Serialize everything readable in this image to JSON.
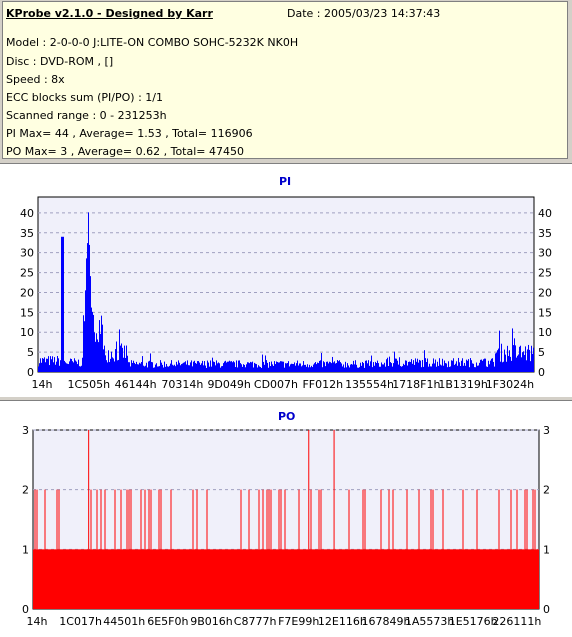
{
  "header": {
    "title": "KProbe v2.1.0 - Designed by Karr",
    "date": "Date : 2005/03/23 14:37:43",
    "lines": [
      "Model : 2-0-0-0 J:LITE-ON COMBO SOHC-5232K NK0H",
      "Disc : DVD-ROM ,  []",
      "Speed : 8x",
      "ECC blocks sum (PI/PO) : 1/1",
      "Scanned range : 0 - 231253h",
      "PI Max= 44 , Average= 1.53 , Total= 116906",
      "PO Max= 3 , Average= 0.62 , Total= 47450"
    ]
  },
  "colors": {
    "pi": "#0000ff",
    "po": "#ff0000",
    "plot_bg": "#f0f0fa",
    "grid": "#a0a0c0"
  },
  "chart_data": [
    {
      "type": "bar",
      "title": "PI",
      "ylim": [
        0,
        44
      ],
      "yticks": [
        0,
        5,
        10,
        15,
        20,
        25,
        30,
        35,
        40
      ],
      "xtick_labels": [
        "14h",
        "1C505h",
        "46144h",
        "70314h",
        "9D049h",
        "CD007h",
        "FF012h",
        "135554h",
        "1718F1h",
        "1B1319h",
        "1F3024h"
      ],
      "grid": "horizontal dashed",
      "profile": [
        {
          "from": 0.0,
          "to": 0.045,
          "level": 3.5
        },
        {
          "from": 0.045,
          "to": 0.052,
          "level": 34
        },
        {
          "from": 0.052,
          "to": 0.09,
          "level": 3
        },
        {
          "from": 0.09,
          "to": 0.11,
          "level": 44
        },
        {
          "from": 0.11,
          "to": 0.13,
          "level": 15
        },
        {
          "from": 0.13,
          "to": 0.18,
          "level": 6
        },
        {
          "from": 0.18,
          "to": 0.7,
          "level": 2.5
        },
        {
          "from": 0.7,
          "to": 0.92,
          "level": 3
        },
        {
          "from": 0.92,
          "to": 1.0,
          "level": 6
        }
      ]
    },
    {
      "type": "bar",
      "title": "PO",
      "ylim": [
        0,
        3
      ],
      "yticks": [
        0,
        1,
        2,
        3
      ],
      "xtick_labels": [
        "14h",
        "1C017h",
        "44501h",
        "6E5F0h",
        "9B016h",
        "C8777h",
        "F7E99h",
        "12E116h",
        "167849h",
        "1A5573h",
        "1E5176h",
        "226111h"
      ],
      "grid": "horizontal dashed",
      "base_level": 1,
      "peaks_at_2_fraction": 0.25,
      "peaks_at_3": [
        0.11,
        0.545,
        0.595
      ]
    }
  ]
}
